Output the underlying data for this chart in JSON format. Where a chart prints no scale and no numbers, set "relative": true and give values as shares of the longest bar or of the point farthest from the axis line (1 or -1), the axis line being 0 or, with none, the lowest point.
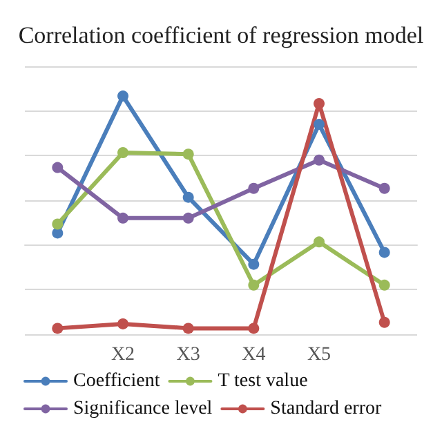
{
  "chart_data": {
    "type": "line",
    "title": "Correlation coefficient of regression model",
    "relative": true,
    "categories": [
      null,
      "X2",
      "X3",
      "X4",
      "X5",
      null
    ],
    "series": [
      {
        "name": "Coefficient",
        "color": "#4a7ebb",
        "values": [
          0.08,
          1,
          0.32,
          -0.13,
          0.81,
          -0.05
        ]
      },
      {
        "name": "T test value",
        "color": "#9bbb59",
        "values": [
          0.14,
          0.62,
          0.61,
          -0.27,
          0.02,
          -0.27
        ]
      },
      {
        "name": "Significance level",
        "color": "#8064a2",
        "values": [
          0.52,
          0.18,
          0.18,
          0.38,
          0.57,
          0.38
        ]
      },
      {
        "name": "Standard error",
        "color": "#c0504d",
        "values": [
          -0.56,
          -0.53,
          -0.56,
          -0.56,
          0.95,
          -0.52
        ]
      }
    ],
    "grid": "y",
    "legend": "bottom",
    "marker": "circle",
    "line_style": "solid"
  }
}
